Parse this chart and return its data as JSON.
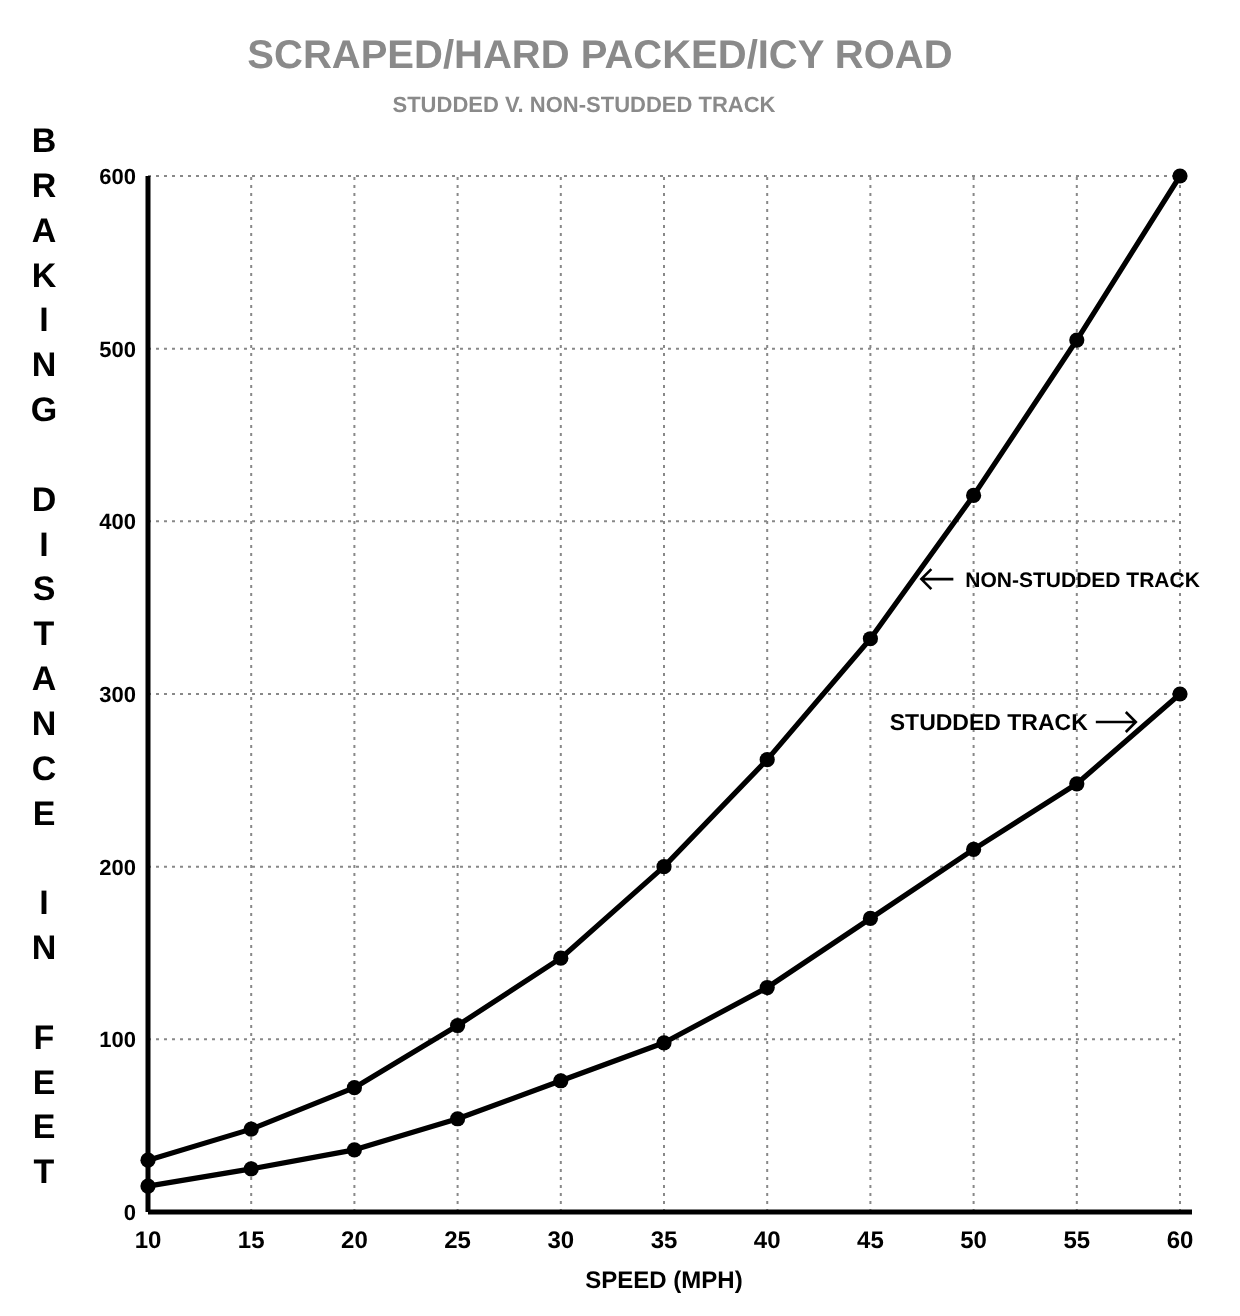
{
  "chart_data": {
    "type": "line",
    "title": "SCRAPED/HARD PACKED/ICY ROAD",
    "subtitle": "STUDDED V. NON-STUDDED TRACK",
    "xlabel": "SPEED (MPH)",
    "ylabel": "BRAKING DISTANCE IN FEET",
    "x": [
      10,
      15,
      20,
      25,
      30,
      35,
      40,
      45,
      50,
      55,
      60
    ],
    "series": [
      {
        "name": "NON-STUDDED TRACK",
        "color": "#000000",
        "values": [
          30,
          48,
          72,
          108,
          147,
          200,
          262,
          332,
          415,
          505,
          600
        ]
      },
      {
        "name": "STUDDED TRACK",
        "color": "#000000",
        "values": [
          15,
          25,
          36,
          54,
          76,
          98,
          130,
          170,
          210,
          248,
          300
        ]
      }
    ],
    "xlim": [
      10,
      60
    ],
    "ylim": [
      0,
      600
    ],
    "xticks": [
      10,
      15,
      20,
      25,
      30,
      35,
      40,
      45,
      50,
      55,
      60
    ],
    "yticks": [
      0,
      100,
      200,
      300,
      400,
      500,
      600
    ],
    "grid": true,
    "marker": "circle",
    "line_style": "solid"
  }
}
